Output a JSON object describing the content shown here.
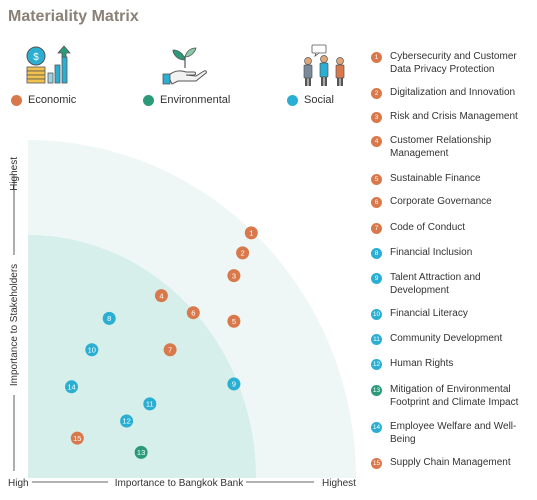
{
  "title": "Materiality Matrix",
  "colors": {
    "economic": "#d9784a",
    "environmental": "#2a9a7a",
    "social": "#2aaed2",
    "outer_zone": "#eef7f5",
    "inner_zone": "#d6efea"
  },
  "categories": [
    {
      "key": "economic",
      "label": "Economic",
      "icon": "coins-growth-icon"
    },
    {
      "key": "environmental",
      "label": "Environmental",
      "icon": "hand-plant-icon"
    },
    {
      "key": "social",
      "label": "Social",
      "icon": "people-speech-icon"
    }
  ],
  "chart_data": {
    "type": "scatter",
    "xlabel": "Importance to Bangkok Bank",
    "ylabel": "Importance to Stakeholders",
    "x_tick_labels": [
      "High",
      "Highest"
    ],
    "y_tick_labels": [
      "High",
      "Highest"
    ],
    "points": [
      {
        "id": "1",
        "x": 7.7,
        "y": 8.6,
        "category": "economic"
      },
      {
        "id": "2",
        "x": 7.4,
        "y": 7.9,
        "category": "economic"
      },
      {
        "id": "3",
        "x": 7.1,
        "y": 7.1,
        "category": "economic"
      },
      {
        "id": "4",
        "x": 4.6,
        "y": 6.4,
        "category": "economic"
      },
      {
        "id": "5",
        "x": 7.1,
        "y": 5.5,
        "category": "economic"
      },
      {
        "id": "6",
        "x": 5.7,
        "y": 5.8,
        "category": "economic"
      },
      {
        "id": "7",
        "x": 4.9,
        "y": 4.5,
        "category": "economic"
      },
      {
        "id": "8",
        "x": 2.8,
        "y": 5.6,
        "category": "social"
      },
      {
        "id": "9",
        "x": 7.1,
        "y": 3.3,
        "category": "social"
      },
      {
        "id": "10",
        "x": 2.2,
        "y": 4.5,
        "category": "social"
      },
      {
        "id": "11",
        "x": 4.2,
        "y": 2.6,
        "category": "social"
      },
      {
        "id": "12",
        "x": 3.4,
        "y": 2.0,
        "category": "social"
      },
      {
        "id": "13",
        "x": 3.9,
        "y": 0.9,
        "category": "environmental"
      },
      {
        "id": "14",
        "x": 1.5,
        "y": 3.2,
        "category": "social"
      },
      {
        "id": "15",
        "x": 1.7,
        "y": 1.4,
        "category": "economic"
      }
    ]
  },
  "legend": [
    {
      "num": "1",
      "text": "Cybersecurity and Customer Data Privacy Protection",
      "category": "economic"
    },
    {
      "num": "2",
      "text": "Digitalization and Innovation",
      "category": "economic"
    },
    {
      "num": "3",
      "text": "Risk and Crisis Management",
      "category": "economic"
    },
    {
      "num": "4",
      "text": "Customer Relationship Management",
      "category": "economic"
    },
    {
      "num": "5",
      "text": "Sustainable Finance",
      "category": "economic"
    },
    {
      "num": "6",
      "text": "Corporate Governance",
      "category": "economic"
    },
    {
      "num": "7",
      "text": "Code of Conduct",
      "category": "economic"
    },
    {
      "num": "8",
      "text": "Financial Inclusion",
      "category": "social"
    },
    {
      "num": "9",
      "text": "Talent Attraction and Development",
      "category": "social"
    },
    {
      "num": "10",
      "text": "Financial Literacy",
      "category": "social"
    },
    {
      "num": "11",
      "text": "Community Development",
      "category": "social"
    },
    {
      "num": "12",
      "text": "Human Rights",
      "category": "social"
    },
    {
      "num": "13",
      "text": "Mitigation of Environmental Footprint and Climate Impact",
      "category": "environmental"
    },
    {
      "num": "14",
      "text": "Employee Welfare and Well-Being",
      "category": "social"
    },
    {
      "num": "15",
      "text": "Supply Chain Management",
      "category": "economic"
    }
  ]
}
